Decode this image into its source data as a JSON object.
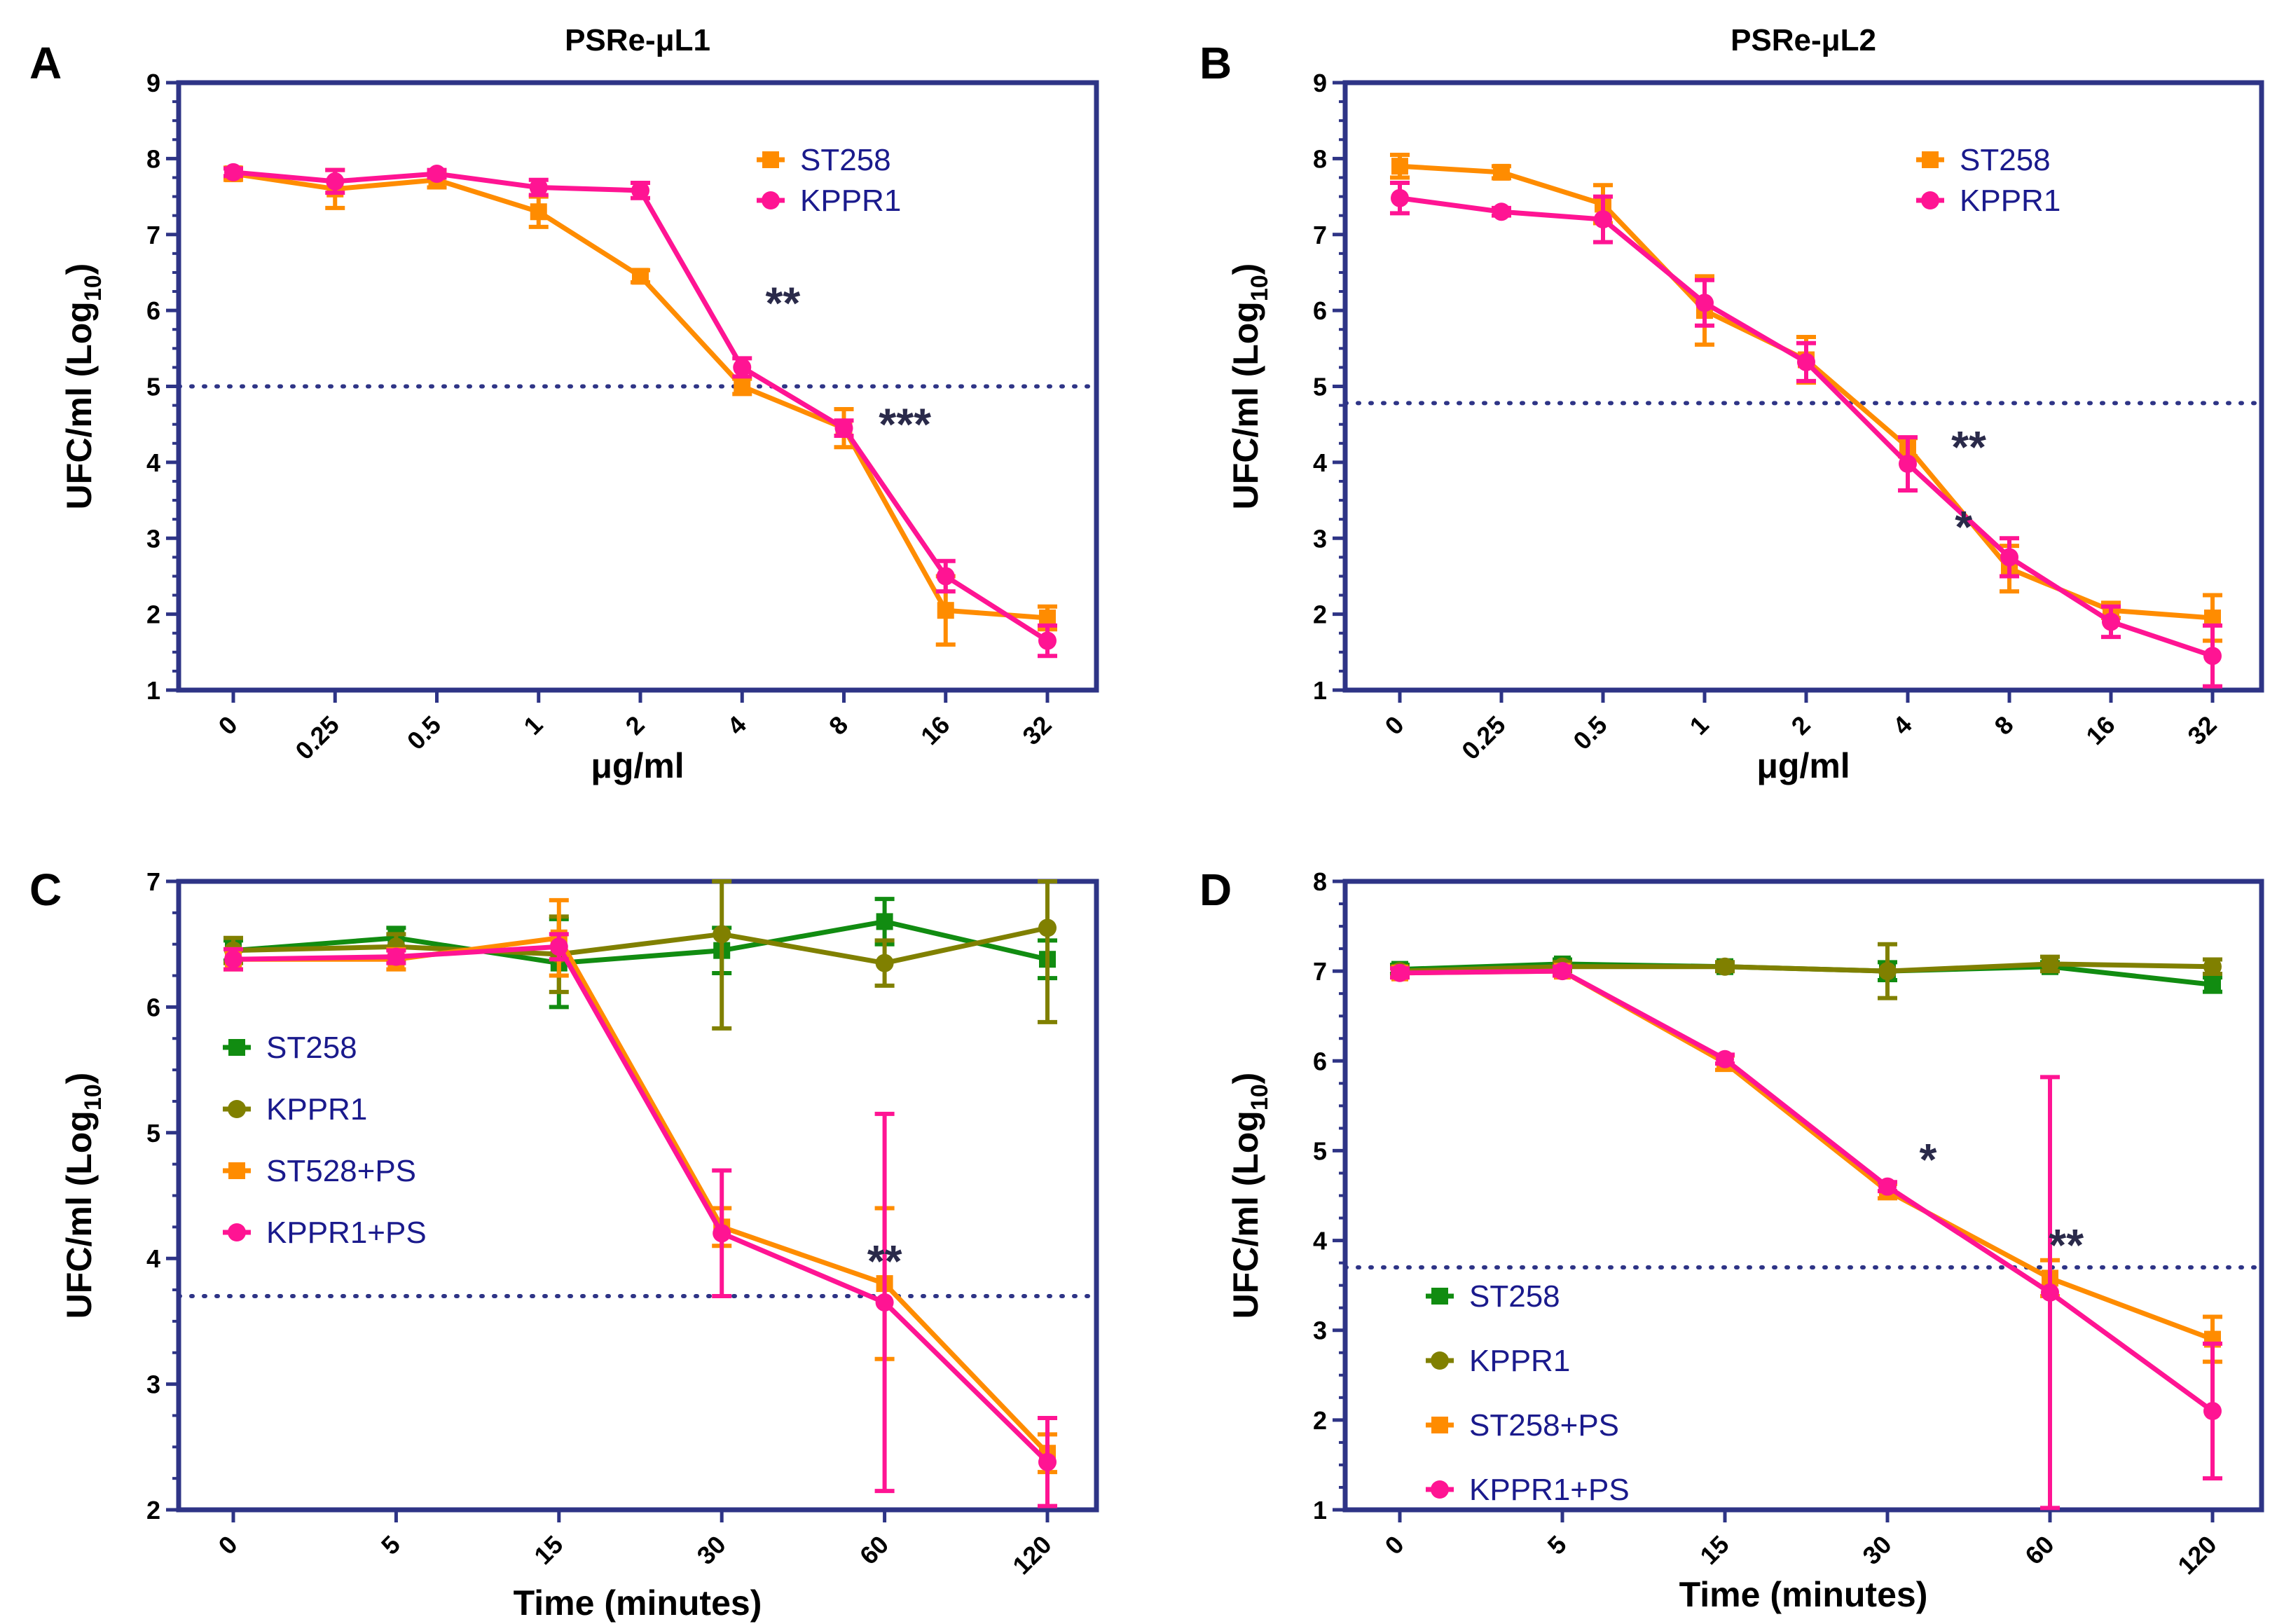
{
  "colors": {
    "axis": "#2e3486",
    "threshold": "#2e3486",
    "st258": "#ff8c00",
    "kppr1": "#ff1493",
    "ctrl_st258": "#118c11",
    "ctrl_kppr1": "#808000",
    "legend_text": "#1a1a8c"
  },
  "chart_data": [
    {
      "id": "A",
      "type": "line",
      "panel_label": "A",
      "title": "PSRe-μL1",
      "xlabel": "μg/ml",
      "ylabel": "UFC/ml (Log",
      "ylabel_sub": "10",
      "ylabel_end": ")",
      "ylim": [
        1,
        9
      ],
      "yticks": [
        1,
        2,
        3,
        4,
        5,
        6,
        7,
        8,
        9
      ],
      "categories": [
        "0",
        "0.25",
        "0.5",
        "1",
        "2",
        "4",
        "8",
        "16",
        "32"
      ],
      "threshold": 5.0,
      "series": [
        {
          "name": "ST258",
          "marker": "square",
          "color_key": "st258",
          "values": [
            7.8,
            7.6,
            7.72,
            7.3,
            6.45,
            5.0,
            4.45,
            2.05,
            1.95
          ],
          "errors": [
            0.08,
            0.25,
            0.1,
            0.2,
            0.08,
            0.1,
            0.25,
            0.45,
            0.15
          ]
        },
        {
          "name": "KPPR1",
          "marker": "circle",
          "color_key": "kppr1",
          "values": [
            7.82,
            7.7,
            7.8,
            7.62,
            7.58,
            5.25,
            4.45,
            2.5,
            1.65
          ],
          "errors": [
            0.05,
            0.15,
            0.05,
            0.1,
            0.1,
            0.12,
            0.1,
            0.2,
            0.2
          ]
        }
      ],
      "legend": [
        "ST258",
        "KPPR1"
      ],
      "annotations": [
        {
          "text": "**",
          "x": 5.4,
          "y": 6.1
        },
        {
          "text": "***",
          "x": 6.6,
          "y": 4.5
        }
      ]
    },
    {
      "id": "B",
      "type": "line",
      "panel_label": "B",
      "title": "PSRe-μL2",
      "xlabel": "μg/ml",
      "ylabel": "UFC/ml (Log",
      "ylabel_sub": "10",
      "ylabel_end": ")",
      "ylim": [
        1,
        9
      ],
      "yticks": [
        1,
        2,
        3,
        4,
        5,
        6,
        7,
        8,
        9
      ],
      "categories": [
        "0",
        "0.25",
        "0.5",
        "1",
        "2",
        "4",
        "8",
        "16",
        "32"
      ],
      "threshold": 4.78,
      "series": [
        {
          "name": "ST258",
          "marker": "square",
          "color_key": "st258",
          "values": [
            7.9,
            7.82,
            7.4,
            6.0,
            5.35,
            4.2,
            2.6,
            2.05,
            1.95
          ],
          "errors": [
            0.15,
            0.08,
            0.25,
            0.45,
            0.3,
            0.12,
            0.3,
            0.1,
            0.3
          ]
        },
        {
          "name": "KPPR1",
          "marker": "circle",
          "color_key": "kppr1",
          "values": [
            7.48,
            7.3,
            7.2,
            6.1,
            5.32,
            3.98,
            2.75,
            1.9,
            1.45
          ],
          "errors": [
            0.2,
            0.05,
            0.3,
            0.3,
            0.25,
            0.35,
            0.25,
            0.2,
            0.4
          ]
        }
      ],
      "legend": [
        "ST258",
        "KPPR1"
      ],
      "annotations": [
        {
          "text": "**",
          "x": 5.6,
          "y": 4.2
        },
        {
          "text": "*",
          "x": 5.55,
          "y": 3.15
        }
      ]
    },
    {
      "id": "C",
      "type": "line",
      "panel_label": "C",
      "title": "",
      "xlabel": "Time (minutes)",
      "ylabel": "UFC/ml (Log",
      "ylabel_sub": "10",
      "ylabel_end": ")",
      "ylim": [
        2,
        7
      ],
      "yticks": [
        2,
        3,
        4,
        5,
        6,
        7
      ],
      "categories": [
        "0",
        "5",
        "15",
        "30",
        "60",
        "120"
      ],
      "threshold": 3.7,
      "series": [
        {
          "name": "ST258",
          "marker": "square",
          "color_key": "ctrl_st258",
          "values": [
            6.45,
            6.55,
            6.35,
            6.45,
            6.68,
            6.38
          ],
          "errors": [
            0.08,
            0.08,
            0.35,
            0.18,
            0.18,
            0.15
          ]
        },
        {
          "name": "KPPR1",
          "marker": "circle",
          "color_key": "ctrl_kppr1",
          "values": [
            6.45,
            6.48,
            6.42,
            6.58,
            6.35,
            6.63
          ],
          "errors": [
            0.1,
            0.1,
            0.3,
            0.75,
            0.18,
            0.75
          ]
        },
        {
          "name": "ST528+PS",
          "marker": "square",
          "color_key": "st258",
          "values": [
            6.38,
            6.38,
            6.55,
            4.25,
            3.8,
            2.45
          ],
          "errors": [
            0.08,
            0.08,
            0.3,
            0.15,
            0.6,
            0.15
          ]
        },
        {
          "name": "KPPR1+PS",
          "marker": "circle",
          "color_key": "kppr1",
          "values": [
            6.38,
            6.4,
            6.48,
            4.2,
            3.65,
            2.38
          ],
          "errors": [
            0.08,
            0.05,
            0.1,
            0.5,
            1.5,
            0.35
          ]
        }
      ],
      "legend": [
        "ST258",
        "KPPR1",
        "ST528+PS",
        "KPPR1+PS"
      ],
      "annotations": [
        {
          "text": "**",
          "x": 4.0,
          "y": 3.98
        }
      ]
    },
    {
      "id": "D",
      "type": "line",
      "panel_label": "D",
      "title": "",
      "xlabel": "Time (minutes)",
      "ylabel": "UFC/ml (Log",
      "ylabel_sub": "10",
      "ylabel_end": ")",
      "ylim": [
        1,
        8
      ],
      "yticks": [
        1,
        2,
        3,
        4,
        5,
        6,
        7,
        8
      ],
      "categories": [
        "0",
        "5",
        "15",
        "30",
        "60",
        "120"
      ],
      "threshold": 3.7,
      "series": [
        {
          "name": "ST258",
          "marker": "square",
          "color_key": "ctrl_st258",
          "values": [
            7.02,
            7.08,
            7.05,
            7.0,
            7.05,
            6.85
          ],
          "errors": [
            0.05,
            0.05,
            0.05,
            0.1,
            0.05,
            0.08
          ]
        },
        {
          "name": "KPPR1",
          "marker": "circle",
          "color_key": "ctrl_kppr1",
          "values": [
            7.0,
            7.05,
            7.05,
            7.0,
            7.08,
            7.05
          ],
          "errors": [
            0.05,
            0.05,
            0.05,
            0.3,
            0.08,
            0.08
          ]
        },
        {
          "name": "ST258+PS",
          "marker": "square",
          "color_key": "st258",
          "values": [
            6.98,
            7.0,
            5.98,
            4.55,
            3.58,
            2.9
          ],
          "errors": [
            0.05,
            0.05,
            0.08,
            0.08,
            0.2,
            0.25
          ]
        },
        {
          "name": "KPPR1+PS",
          "marker": "circle",
          "color_key": "kppr1",
          "values": [
            6.98,
            7.0,
            6.02,
            4.6,
            3.42,
            2.1
          ],
          "errors": [
            0.05,
            0.05,
            0.05,
            0.05,
            2.4,
            0.75
          ]
        }
      ],
      "legend": [
        "ST258",
        "KPPR1",
        "ST258+PS",
        "KPPR1+PS"
      ],
      "annotations": [
        {
          "text": "*",
          "x": 3.25,
          "y": 4.9
        },
        {
          "text": "**",
          "x": 4.1,
          "y": 3.95
        }
      ]
    }
  ]
}
